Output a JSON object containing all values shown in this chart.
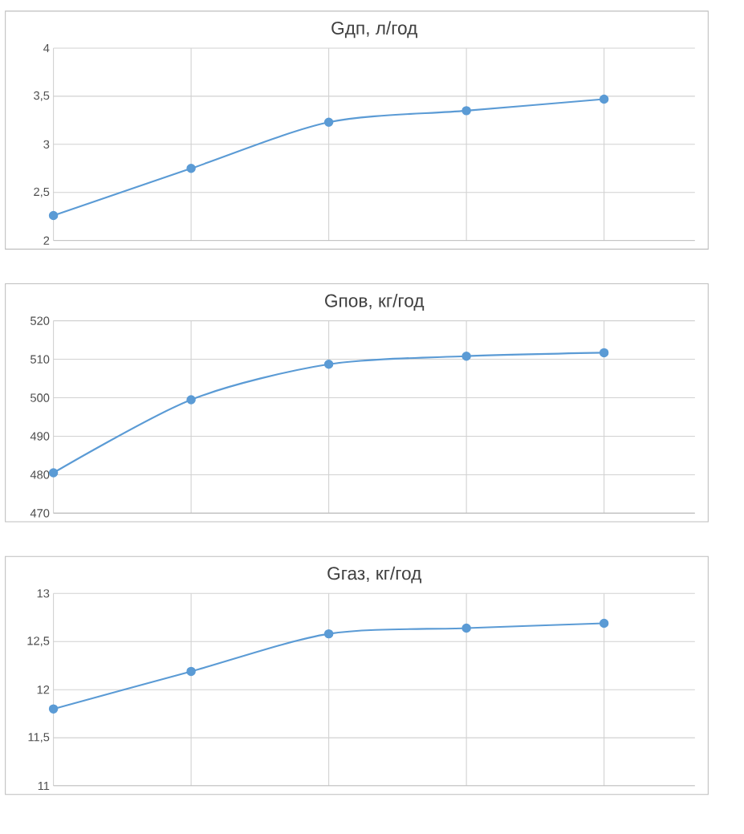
{
  "chart_data": [
    {
      "type": "line",
      "title": "Gдп, л/год",
      "categories": [
        null,
        null,
        null,
        null,
        null
      ],
      "values": [
        2.26,
        2.75,
        3.23,
        3.35,
        3.47
      ],
      "color": "#5b9bd5",
      "marker": "circle",
      "line_style": "solid",
      "grid": true,
      "tick_labels": "y",
      "ylim": [
        2,
        4
      ],
      "yticks": [
        2,
        {
          "value": 2.5,
          "label": "2,5"
        },
        3,
        {
          "value": 3.5,
          "label": "3,5"
        },
        4
      ]
    },
    {
      "type": "line",
      "title": "Gпов, кг/год",
      "categories": [
        null,
        null,
        null,
        null,
        null
      ],
      "values": [
        480.5,
        499.5,
        508.7,
        510.8,
        511.7
      ],
      "color": "#5b9bd5",
      "marker": "circle",
      "line_style": "solid",
      "grid": true,
      "tick_labels": "y",
      "ylim": [
        470,
        520
      ],
      "yticks": [
        470,
        480,
        490,
        500,
        510,
        520
      ]
    },
    {
      "type": "line",
      "title": "Gгаз, кг/год",
      "categories": [
        null,
        null,
        null,
        null,
        null
      ],
      "values": [
        11.8,
        12.19,
        12.58,
        12.64,
        12.69
      ],
      "color": "#5b9bd5",
      "marker": "circle",
      "line_style": "solid",
      "grid": true,
      "tick_labels": "y",
      "ylim": [
        11,
        13
      ],
      "yticks": [
        11,
        {
          "value": 11.5,
          "label": "11,5"
        },
        12,
        {
          "value": 12.5,
          "label": "12,5"
        },
        13
      ]
    }
  ]
}
